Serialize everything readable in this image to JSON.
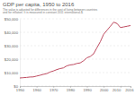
{
  "chart_data": {
    "type": "line",
    "title": "GDP per capita, 1950 to 2016",
    "subtitle": "The value is adjusted for differences in the cost of living between countries and for inflation. It is measured in constant 2011 international-$.",
    "x": [
      1950,
      1952,
      1954,
      1956,
      1958,
      1960,
      1962,
      1964,
      1966,
      1968,
      1970,
      1972,
      1974,
      1976,
      1978,
      1980,
      1982,
      1984,
      1986,
      1988,
      1990,
      1992,
      1994,
      1996,
      1998,
      2000,
      2002,
      2004,
      2006,
      2008,
      2010,
      2012,
      2014,
      2016
    ],
    "values": [
      6000,
      6200,
      6400,
      6700,
      6800,
      7400,
      8000,
      8700,
      9200,
      10400,
      11200,
      12200,
      13000,
      13500,
      15000,
      15700,
      16000,
      16800,
      17200,
      18800,
      21000,
      22000,
      24000,
      28500,
      33000,
      38500,
      41500,
      44500,
      47500,
      46500,
      43500,
      44000,
      44500,
      45000
    ],
    "color": "#be4a5f",
    "xlim": [
      1950,
      2016
    ],
    "xticks": [
      1950,
      1960,
      1970,
      1980,
      1990,
      2000,
      2010,
      2016
    ],
    "ylim": [
      0,
      50000
    ],
    "yticks": [
      {
        "value": 0,
        "label": "$0"
      },
      {
        "value": 10000,
        "label": "$10,000"
      },
      {
        "value": 20000,
        "label": "$20,000"
      },
      {
        "value": 30000,
        "label": "$30,000"
      },
      {
        "value": 40000,
        "label": "$40,000"
      },
      {
        "value": 50000,
        "label": "$50,000"
      }
    ],
    "grid": true
  }
}
